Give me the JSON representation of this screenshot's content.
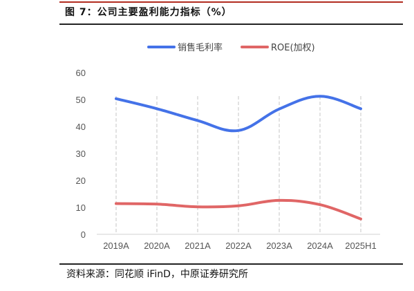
{
  "figure": {
    "title": "图 7：公司主要盈利能力指标（%）",
    "source": "资料来源：同花顺 iFinD，中原证券研究所"
  },
  "chart_data": {
    "type": "line",
    "categories": [
      "2019A",
      "2020A",
      "2021A",
      "2022A",
      "2023A",
      "2024A",
      "2025H1"
    ],
    "ylim": [
      0,
      60
    ],
    "yticks": [
      0,
      10,
      20,
      30,
      40,
      50,
      60
    ],
    "grid": "vertical dashed at categories",
    "legend_position": "top",
    "xlabel": "",
    "ylabel": "",
    "series": [
      {
        "name": "销售毛利率",
        "color": "#4472e8",
        "values": [
          50.3,
          46.6,
          42.2,
          38.5,
          46.5,
          51.2,
          46.6
        ]
      },
      {
        "name": "ROE(加权)",
        "color": "#e06666",
        "values": [
          11.4,
          11.2,
          10.2,
          10.6,
          12.6,
          11.0,
          5.7
        ]
      }
    ]
  }
}
